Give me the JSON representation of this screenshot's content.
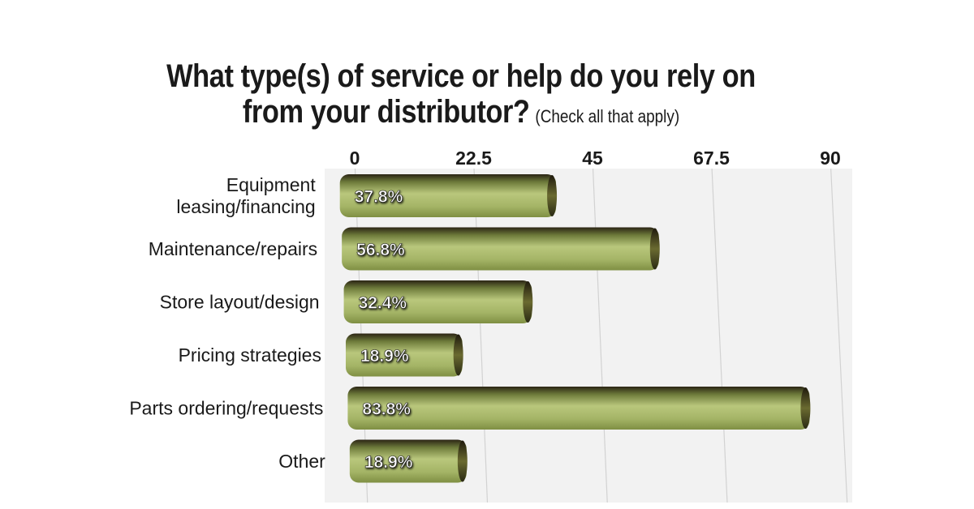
{
  "chart_data": {
    "type": "bar",
    "orientation": "horizontal",
    "title_line_1": "What type(s) of service or help do you rely on",
    "title_line_2": "from your distributor?",
    "title_note": "(Check all that apply)",
    "categories": [
      [
        "Equipment",
        "leasing/financing"
      ],
      [
        "Maintenance/repairs"
      ],
      [
        "Store layout/design"
      ],
      [
        "Pricing strategies"
      ],
      [
        "Parts ordering/requests"
      ],
      [
        "Other"
      ]
    ],
    "values": [
      37.8,
      56.8,
      32.4,
      18.9,
      83.8,
      18.9
    ],
    "value_labels": [
      "37.8%",
      "56.8%",
      "32.4%",
      "18.9%",
      "83.8%",
      "18.9%"
    ],
    "x_ticks": [
      0,
      22.5,
      45,
      67.5,
      90
    ],
    "x_tick_labels": [
      "0",
      "22.5",
      "45",
      "67.5",
      "90"
    ],
    "xlim": [
      0,
      90
    ],
    "xlabel": "",
    "ylabel": "",
    "grid": true,
    "axis_position": "top",
    "colors": {
      "bar_light": "#b9c77c",
      "bar_mid": "#8e9e4f",
      "bar_dark": "#2b2414",
      "plot_bg": "#f2f2f2",
      "grid": "#d2d2d2",
      "text": "#1a1a1a"
    }
  }
}
